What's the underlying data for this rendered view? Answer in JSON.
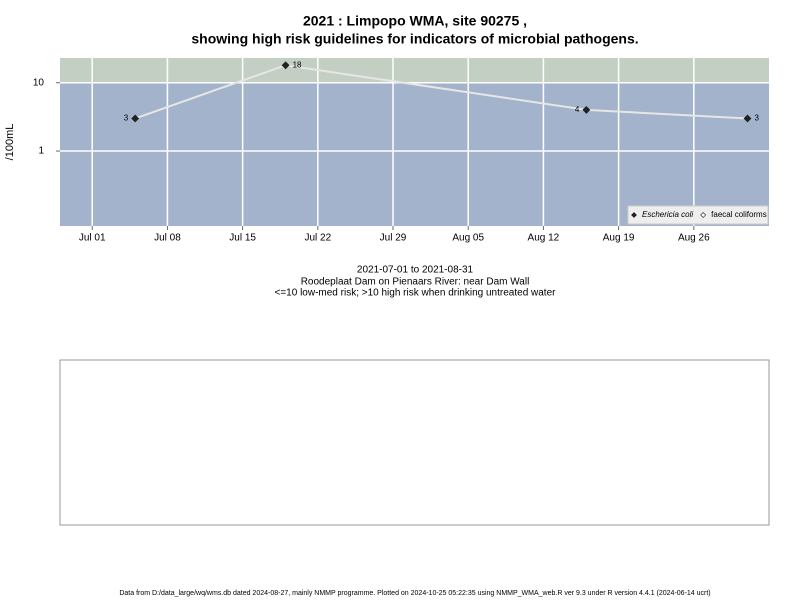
{
  "chart_data": {
    "type": "line",
    "title": "2021 : Limpopo WMA, site 90275 ,",
    "title_line2": "showing high risk guidelines for indicators of microbial pathogens.",
    "subtitle": [
      "2021-07-01 to 2021-08-31",
      "Roodeplaat Dam on Pienaars River: near Dam Wall",
      "<=10 low-med risk; >10 high risk when drinking untreated water"
    ],
    "y_label": "/100mL",
    "log_scale_y": true,
    "high_risk_above": 10,
    "zone_colors": {
      "low": "#a3b3cc",
      "high": "#c3cfc3"
    },
    "grid": true,
    "legend": "bottom-right",
    "x": [
      "2021-07-05",
      "2021-07-19",
      "2021-08-16",
      "2021-08-31"
    ],
    "series": [
      {
        "name": "Eschericia coli",
        "color": "#222222",
        "line_color": "#e6e6e6",
        "values": [
          3,
          18,
          4,
          3
        ]
      },
      {
        "name": "faecal coliforms",
        "color": "#ffffff",
        "values": [
          null,
          null,
          null,
          null
        ]
      }
    ],
    "xlim": [
      "2021-06-28",
      "2021-09-02"
    ],
    "xticks": [
      {
        "value": "2021-07-01",
        "label": "Jul 01"
      },
      {
        "value": "2021-07-08",
        "label": "Jul 08"
      },
      {
        "value": "2021-07-15",
        "label": "Jul 15"
      },
      {
        "value": "2021-07-22",
        "label": "Jul 22"
      },
      {
        "value": "2021-07-29",
        "label": "Jul 29"
      },
      {
        "value": "2021-08-05",
        "label": "Aug 05"
      },
      {
        "value": "2021-08-12",
        "label": "Aug 12"
      },
      {
        "value": "2021-08-19",
        "label": "Aug 19"
      },
      {
        "value": "2021-08-26",
        "label": "Aug 26"
      }
    ],
    "ylim": [
      0.08,
      23
    ],
    "yticks": [
      1,
      10
    ],
    "footer": "Data from D:/data_large/wq/wms.db dated 2024-08-27, mainly NMMP programme. Plotted on 2024-10-25 05:22:35 using NMMP_WMA_web.R ver 9.3 under R version 4.4.1 (2024-06-14 ucrt)"
  }
}
